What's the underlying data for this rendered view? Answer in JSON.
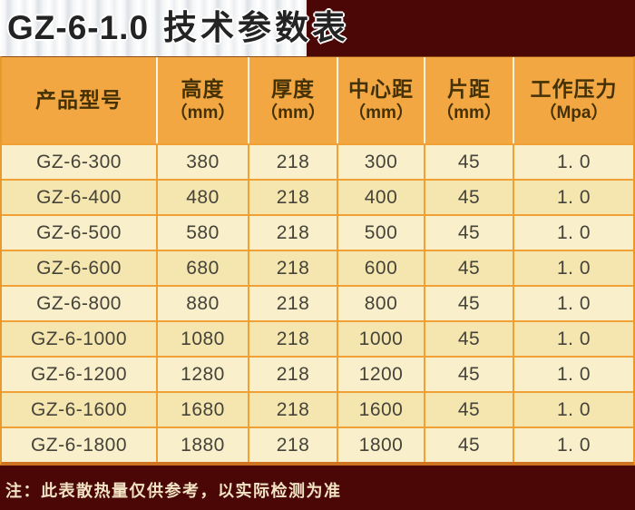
{
  "header": {
    "model": "GZ-6-1.0",
    "subtitle": "技术参数表"
  },
  "table": {
    "columns": [
      {
        "label": "产品型号",
        "unit": ""
      },
      {
        "label": "高度",
        "unit": "（mm）"
      },
      {
        "label": "厚度",
        "unit": "（mm）"
      },
      {
        "label": "中心距",
        "unit": "（mm）"
      },
      {
        "label": "片距",
        "unit": "（mm）"
      },
      {
        "label": "工作压力",
        "unit": "（Mpa）"
      }
    ],
    "rows": [
      [
        "GZ-6-300",
        "380",
        "218",
        "300",
        "45",
        "1. 0"
      ],
      [
        "GZ-6-400",
        "480",
        "218",
        "400",
        "45",
        "1. 0"
      ],
      [
        "GZ-6-500",
        "580",
        "218",
        "500",
        "45",
        "1. 0"
      ],
      [
        "GZ-6-600",
        "680",
        "218",
        "600",
        "45",
        "1. 0"
      ],
      [
        "GZ-6-800",
        "880",
        "218",
        "800",
        "45",
        "1. 0"
      ],
      [
        "GZ-6-1000",
        "1080",
        "218",
        "1000",
        "45",
        "1. 0"
      ],
      [
        "GZ-6-1200",
        "1280",
        "218",
        "1200",
        "45",
        "1. 0"
      ],
      [
        "GZ-6-1600",
        "1680",
        "218",
        "1600",
        "45",
        "1. 0"
      ],
      [
        "GZ-6-1800",
        "1880",
        "218",
        "1800",
        "45",
        "1. 0"
      ]
    ]
  },
  "footer": {
    "note": "注：此表散热量仅供参考，以实际检测为准"
  },
  "colors": {
    "background": "#4a0705",
    "header_bg": "#f3a742",
    "row_light": "#f9efca",
    "row_dark": "#f5e6af",
    "grid_orange": "#f0a034",
    "header_text": "#443106",
    "cell_text": "#45433a",
    "note_text": "#f2e3c4"
  }
}
